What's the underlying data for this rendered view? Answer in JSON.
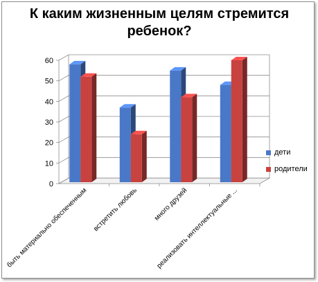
{
  "chart_data": {
    "type": "bar",
    "title": "К каким жизненным целям стремится ребенок?",
    "categories": [
      "быть материально обеспеченным",
      "встретить любовь",
      "много друзей",
      "реализовать интеллектуальные ..."
    ],
    "series": [
      {
        "name": "дети",
        "values": [
          58,
          37,
          55,
          48
        ],
        "color": "#4a78c8"
      },
      {
        "name": "родители",
        "values": [
          52,
          24,
          42,
          60
        ],
        "color": "#c8423f"
      }
    ],
    "yticks": [
      0,
      10,
      20,
      30,
      40,
      50,
      60
    ],
    "ylim": [
      0,
      60
    ],
    "grid": true,
    "legend_position": "right",
    "style": "3d-columns"
  }
}
